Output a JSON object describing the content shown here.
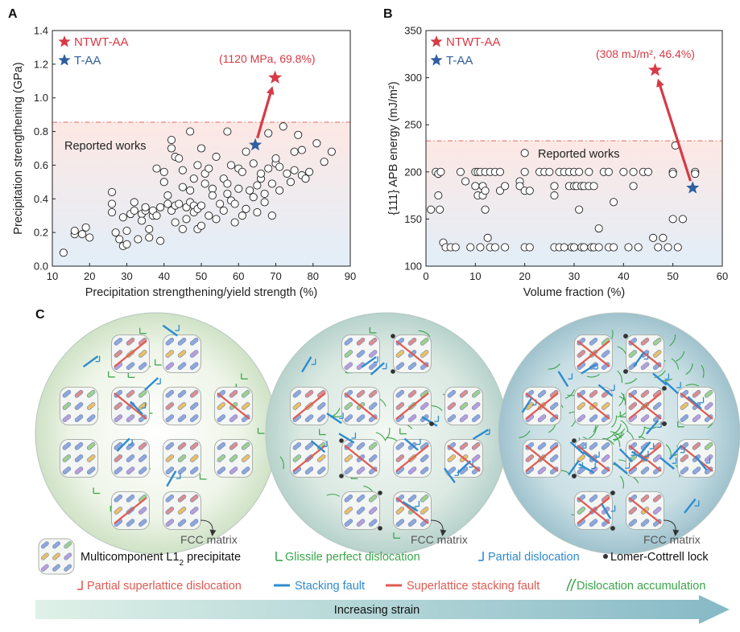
{
  "chart_data": [
    {
      "panel": "A",
      "type": "scatter",
      "xlabel": "Precipitation strengthening/yield strength (%)",
      "ylabel": "Precipitation strengthening (GPa)",
      "xlim": [
        10,
        90
      ],
      "ylim": [
        0.0,
        1.4
      ],
      "xticks": [
        10,
        20,
        30,
        40,
        50,
        60,
        70,
        80,
        90
      ],
      "yticks": [
        0.0,
        0.2,
        0.4,
        0.6,
        0.8,
        1.0,
        1.2,
        1.4
      ],
      "ytick_labels": [
        "0.0",
        "0.2",
        "0.4",
        "0.6",
        "0.8",
        "1.0",
        "1.2",
        "1.4"
      ],
      "reference_line_y": 0.855,
      "reported_label": "Reported works",
      "legend": [
        {
          "label": "NTWT-AA",
          "color": "#d63a46"
        },
        {
          "label": "T-AA",
          "color": "#2f5f9f"
        }
      ],
      "highlight": {
        "ntwt": {
          "x": 69.8,
          "y": 1.12,
          "label": "(1120 MPa, 69.8%)"
        },
        "taa": {
          "x": 64.5,
          "y": 0.72
        }
      },
      "reported_points": [
        [
          13,
          0.08
        ],
        [
          16,
          0.19
        ],
        [
          16,
          0.21
        ],
        [
          18,
          0.19
        ],
        [
          19,
          0.23
        ],
        [
          20,
          0.17
        ],
        [
          26,
          0.44
        ],
        [
          26,
          0.37
        ],
        [
          26,
          0.32
        ],
        [
          27,
          0.2
        ],
        [
          28,
          0.16
        ],
        [
          29,
          0.29
        ],
        [
          29,
          0.12
        ],
        [
          30,
          0.13
        ],
        [
          30,
          0.21
        ],
        [
          31,
          0.31
        ],
        [
          32,
          0.33
        ],
        [
          32,
          0.38
        ],
        [
          33,
          0.16
        ],
        [
          34,
          0.31
        ],
        [
          34,
          0.27
        ],
        [
          35,
          0.33
        ],
        [
          35,
          0.35
        ],
        [
          36,
          0.17
        ],
        [
          36,
          0.22
        ],
        [
          37,
          0.3
        ],
        [
          37,
          0.33
        ],
        [
          38,
          0.58
        ],
        [
          38,
          0.3
        ],
        [
          39,
          0.35
        ],
        [
          39,
          0.15
        ],
        [
          40,
          0.5
        ],
        [
          40,
          0.56
        ],
        [
          41,
          0.42
        ],
        [
          41,
          0.37
        ],
        [
          42,
          0.75
        ],
        [
          42,
          0.7
        ],
        [
          42,
          0.33
        ],
        [
          43,
          0.26
        ],
        [
          43,
          0.36
        ],
        [
          43,
          0.65
        ],
        [
          44,
          0.64
        ],
        [
          44,
          0.37
        ],
        [
          45,
          0.47
        ],
        [
          45,
          0.57
        ],
        [
          45,
          0.22
        ],
        [
          46,
          0.35
        ],
        [
          46,
          0.28
        ],
        [
          47,
          0.8
        ],
        [
          47,
          0.45
        ],
        [
          47,
          0.38
        ],
        [
          48,
          0.36
        ],
        [
          48,
          0.52
        ],
        [
          48,
          0.32
        ],
        [
          49,
          0.6
        ],
        [
          49,
          0.34
        ],
        [
          49,
          0.22
        ],
        [
          50,
          0.7
        ],
        [
          50,
          0.24
        ],
        [
          50,
          0.36
        ],
        [
          51,
          0.49
        ],
        [
          51,
          0.55
        ],
        [
          52,
          0.58
        ],
        [
          52,
          0.3
        ],
        [
          53,
          0.46
        ],
        [
          53,
          0.42
        ],
        [
          54,
          0.65
        ],
        [
          54,
          0.28
        ],
        [
          55,
          0.37
        ],
        [
          56,
          0.33
        ],
        [
          56,
          0.52
        ],
        [
          57,
          0.8
        ],
        [
          57,
          0.49
        ],
        [
          57,
          0.43
        ],
        [
          58,
          0.6
        ],
        [
          58,
          0.39
        ],
        [
          59,
          0.26
        ],
        [
          59,
          0.37
        ],
        [
          60,
          0.58
        ],
        [
          60,
          0.46
        ],
        [
          61,
          0.3
        ],
        [
          61,
          0.56
        ],
        [
          62,
          0.68
        ],
        [
          62,
          0.34
        ],
        [
          63,
          0.45
        ],
        [
          64,
          0.61
        ],
        [
          64,
          0.41
        ],
        [
          65,
          0.48
        ],
        [
          65,
          0.32
        ],
        [
          66,
          0.52
        ],
        [
          66,
          0.55
        ],
        [
          67,
          0.43
        ],
        [
          67,
          0.38
        ],
        [
          68,
          0.79
        ],
        [
          68,
          0.58
        ],
        [
          69,
          0.49
        ],
        [
          69,
          0.3
        ],
        [
          70,
          0.61
        ],
        [
          70,
          0.64
        ],
        [
          71,
          0.59
        ],
        [
          71,
          0.45
        ],
        [
          72,
          0.83
        ],
        [
          73,
          0.55
        ],
        [
          74,
          0.5
        ],
        [
          75,
          0.68
        ],
        [
          75,
          0.57
        ],
        [
          76,
          0.78
        ],
        [
          77,
          0.69
        ],
        [
          77,
          0.54
        ],
        [
          78,
          0.52
        ],
        [
          79,
          0.56
        ],
        [
          81,
          0.73
        ],
        [
          83,
          0.62
        ],
        [
          85,
          0.68
        ]
      ]
    },
    {
      "panel": "B",
      "type": "scatter",
      "xlabel": "Volume fraction (%)",
      "ylabel": "{111} APB energy (mJ/m²)",
      "xlim": [
        0,
        60
      ],
      "ylim": [
        100,
        350
      ],
      "xticks": [
        0,
        10,
        20,
        30,
        40,
        50,
        60
      ],
      "yticks": [
        100,
        150,
        200,
        250,
        300,
        350
      ],
      "ytick_labels": [
        "100",
        "150",
        "200",
        "250",
        "300",
        "350"
      ],
      "reference_line_y": 233,
      "reported_label": "Reported works",
      "legend": [
        {
          "label": "NTWT-AA",
          "color": "#d63a46"
        },
        {
          "label": "T-AA",
          "color": "#2f5f9f"
        }
      ],
      "highlight": {
        "ntwt": {
          "x": 46.4,
          "y": 308,
          "label": "(308 mJ/m², 46.4%)"
        },
        "taa": {
          "x": 54,
          "y": 183
        }
      },
      "reported_points": [
        [
          1,
          160
        ],
        [
          2,
          200
        ],
        [
          2.5,
          198
        ],
        [
          2.5,
          175
        ],
        [
          2.8,
          160
        ],
        [
          3,
          200
        ],
        [
          3.5,
          125
        ],
        [
          4,
          120
        ],
        [
          5,
          120
        ],
        [
          6,
          120
        ],
        [
          7,
          200
        ],
        [
          8,
          190
        ],
        [
          9,
          120
        ],
        [
          10,
          200
        ],
        [
          10,
          185
        ],
        [
          10.5,
          175
        ],
        [
          10.5,
          200
        ],
        [
          11,
          120
        ],
        [
          11,
          200
        ],
        [
          11.5,
          175
        ],
        [
          11.5,
          185
        ],
        [
          12,
          160
        ],
        [
          12,
          180
        ],
        [
          12,
          200
        ],
        [
          12.5,
          130
        ],
        [
          13,
          120
        ],
        [
          13,
          200
        ],
        [
          14,
          120
        ],
        [
          14,
          200
        ],
        [
          15,
          180
        ],
        [
          15,
          200
        ],
        [
          16,
          185
        ],
        [
          16,
          120
        ],
        [
          19,
          190
        ],
        [
          19,
          185
        ],
        [
          20,
          200
        ],
        [
          20,
          180
        ],
        [
          20,
          220
        ],
        [
          20,
          120
        ],
        [
          21,
          120
        ],
        [
          21,
          180
        ],
        [
          23,
          200
        ],
        [
          24,
          200
        ],
        [
          25,
          200
        ],
        [
          26,
          185
        ],
        [
          26,
          175
        ],
        [
          26,
          120
        ],
        [
          27,
          120
        ],
        [
          27,
          200
        ],
        [
          28,
          200
        ],
        [
          28,
          120
        ],
        [
          29,
          185
        ],
        [
          29,
          200
        ],
        [
          29.5,
          120
        ],
        [
          30,
          185
        ],
        [
          30,
          200
        ],
        [
          30,
          120
        ],
        [
          30.5,
          185
        ],
        [
          31,
          200
        ],
        [
          31,
          160
        ],
        [
          31.5,
          185
        ],
        [
          31.5,
          120
        ],
        [
          32,
          120
        ],
        [
          32,
          185
        ],
        [
          33,
          200
        ],
        [
          33,
          185
        ],
        [
          33.5,
          120
        ],
        [
          34,
          120
        ],
        [
          34,
          185
        ],
        [
          35,
          140
        ],
        [
          35,
          120
        ],
        [
          36,
          200
        ],
        [
          37,
          120
        ],
        [
          37,
          200
        ],
        [
          38,
          120
        ],
        [
          38,
          168
        ],
        [
          40,
          200
        ],
        [
          41,
          120
        ],
        [
          42,
          185
        ],
        [
          42,
          200
        ],
        [
          43,
          120
        ],
        [
          44,
          200
        ],
        [
          45,
          200
        ],
        [
          46,
          130
        ],
        [
          47,
          120
        ],
        [
          48,
          130
        ],
        [
          49,
          120
        ],
        [
          50,
          200
        ],
        [
          50,
          198
        ],
        [
          50,
          150
        ],
        [
          50.5,
          228
        ],
        [
          51,
          120
        ],
        [
          52,
          150
        ],
        [
          54.5,
          200
        ],
        [
          54.5,
          198
        ]
      ]
    }
  ],
  "schematic": {
    "panel_label": "C",
    "matrix_label": "FCC matrix",
    "key": {
      "precipitate": "Multicomponent L1",
      "precipitate_sub": "2",
      "precipitate_suffix": " precipitate",
      "glissile": "Glissile perfect dislocation",
      "partial": "Partial dislocation",
      "lock": "Lomer-Cottrell lock",
      "superlattice_partial": "Partial superlattice dislocation",
      "stacking_fault": "Stacking fault",
      "superlattice_sf": "Superlattice stacking fault",
      "accumulation": "Dislocation accumulation"
    },
    "strain_label": "Increasing strain"
  },
  "colors": {
    "ntwt": "#d63a46",
    "taa": "#2f5f9f",
    "green": "#3aa64a",
    "blue": "#2e8bd0",
    "red": "#e05a52"
  }
}
